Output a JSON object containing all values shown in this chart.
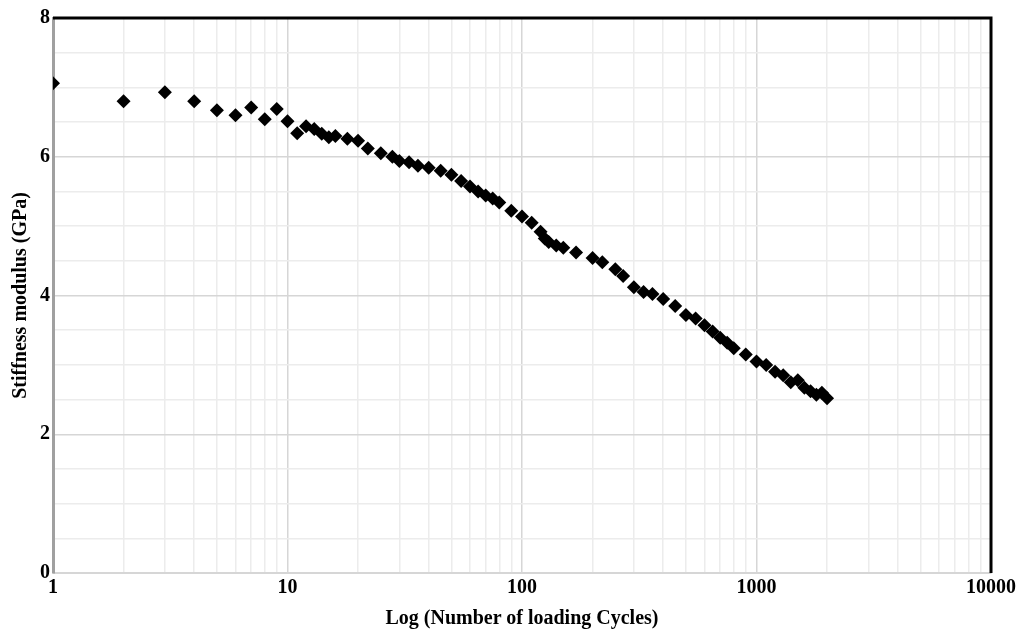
{
  "chart_data": {
    "type": "scatter",
    "xlabel": "Log (Number of loading Cycles)",
    "ylabel": "Stiffness modulus (GPa)",
    "log": "x",
    "grid": true,
    "marker": "diamond",
    "xlim": [
      1,
      10000
    ],
    "ylim": [
      0,
      8
    ],
    "xticks": [
      1,
      {
        "value": 2,
        "label": null
      },
      {
        "value": 3,
        "label": null
      },
      {
        "value": 4,
        "label": null
      },
      {
        "value": 5,
        "label": null
      },
      {
        "value": 6,
        "label": null
      },
      {
        "value": 7,
        "label": null
      },
      {
        "value": 8,
        "label": null
      },
      {
        "value": 9,
        "label": null
      },
      10,
      {
        "value": 20,
        "label": null
      },
      {
        "value": 30,
        "label": null
      },
      {
        "value": 40,
        "label": null
      },
      {
        "value": 50,
        "label": null
      },
      {
        "value": 60,
        "label": null
      },
      {
        "value": 70,
        "label": null
      },
      {
        "value": 80,
        "label": null
      },
      {
        "value": 90,
        "label": null
      },
      100,
      {
        "value": 200,
        "label": null
      },
      {
        "value": 300,
        "label": null
      },
      {
        "value": 400,
        "label": null
      },
      {
        "value": 500,
        "label": null
      },
      {
        "value": 600,
        "label": null
      },
      {
        "value": 700,
        "label": null
      },
      {
        "value": 800,
        "label": null
      },
      {
        "value": 900,
        "label": null
      },
      1000,
      {
        "value": 2000,
        "label": null
      },
      {
        "value": 3000,
        "label": null
      },
      {
        "value": 4000,
        "label": null
      },
      {
        "value": 5000,
        "label": null
      },
      {
        "value": 6000,
        "label": null
      },
      {
        "value": 7000,
        "label": null
      },
      {
        "value": 8000,
        "label": null
      },
      {
        "value": 9000,
        "label": null
      },
      10000
    ],
    "yticks": [
      0,
      {
        "value": 0.5,
        "label": null
      },
      {
        "value": 1,
        "label": null
      },
      {
        "value": 1.5,
        "label": null
      },
      2,
      {
        "value": 2.5,
        "label": null
      },
      {
        "value": 3,
        "label": null
      },
      {
        "value": 3.5,
        "label": null
      },
      4,
      {
        "value": 4.5,
        "label": null
      },
      {
        "value": 5,
        "label": null
      },
      {
        "value": 5.5,
        "label": null
      },
      6,
      {
        "value": 6.5,
        "label": null
      },
      {
        "value": 7,
        "label": null
      },
      {
        "value": 7.5,
        "label": null
      },
      8
    ],
    "series": [
      {
        "color": "#000000",
        "x": [
          1,
          2,
          3,
          4,
          5,
          6,
          7,
          8,
          9,
          10,
          11,
          12,
          13,
          14,
          15,
          16,
          18,
          20,
          22,
          25,
          28,
          30,
          33,
          36,
          40,
          45,
          50,
          55,
          60,
          65,
          70,
          75,
          80,
          90,
          100,
          110,
          120,
          125,
          130,
          140,
          150,
          170,
          200,
          220,
          250,
          270,
          300,
          330,
          360,
          400,
          450,
          500,
          550,
          600,
          650,
          700,
          750,
          800,
          900,
          1000,
          1100,
          1200,
          1300,
          1400,
          1500,
          1600,
          1700,
          1800,
          1900,
          2000
        ],
        "values": [
          7.06,
          6.8,
          6.93,
          6.8,
          6.67,
          6.6,
          6.71,
          6.54,
          6.69,
          6.51,
          6.34,
          6.44,
          6.4,
          6.33,
          6.28,
          6.3,
          6.26,
          6.23,
          6.12,
          6.05,
          6.0,
          5.94,
          5.92,
          5.87,
          5.84,
          5.8,
          5.74,
          5.65,
          5.57,
          5.5,
          5.44,
          5.4,
          5.34,
          5.22,
          5.14,
          5.05,
          4.92,
          4.82,
          4.77,
          4.72,
          4.69,
          4.62,
          4.54,
          4.48,
          4.38,
          4.28,
          4.12,
          4.05,
          4.02,
          3.95,
          3.85,
          3.72,
          3.67,
          3.57,
          3.48,
          3.39,
          3.32,
          3.24,
          3.15,
          3.05,
          3.0,
          2.9,
          2.85,
          2.75,
          2.78,
          2.67,
          2.62,
          2.57,
          2.6,
          2.52
        ]
      }
    ]
  }
}
